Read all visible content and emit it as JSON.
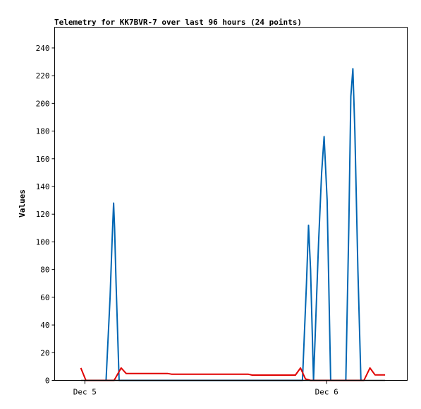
{
  "chart_data": {
    "type": "line",
    "title": "Telemetry for KK7BVR-7 over last 96 hours (24 points)",
    "xlabel": "",
    "ylabel": "Values",
    "x_ticks": [
      "Dec 5",
      "Dec 6"
    ],
    "y_ticks": [
      0,
      20,
      40,
      60,
      80,
      100,
      120,
      140,
      160,
      180,
      200,
      220,
      240
    ],
    "ylim": [
      0,
      255
    ],
    "grid": false,
    "legend": "none",
    "x_unit": "hours from Dec 5 00:00",
    "xlim": [
      -3,
      32
    ],
    "series": [
      {
        "color": "#0066b3",
        "points": [
          [
            2.1,
            0
          ],
          [
            2.5,
            60
          ],
          [
            2.7,
            100
          ],
          [
            2.85,
            128
          ],
          [
            2.95,
            110
          ],
          [
            3.1,
            70
          ],
          [
            3.4,
            0
          ],
          [
            21.6,
            0
          ],
          [
            22.0,
            70
          ],
          [
            22.2,
            112
          ],
          [
            22.4,
            80
          ],
          [
            22.7,
            0
          ],
          [
            22.85,
            30
          ],
          [
            23.2,
            100
          ],
          [
            23.5,
            150
          ],
          [
            23.75,
            176
          ],
          [
            24.05,
            130
          ],
          [
            24.4,
            0
          ],
          [
            25.9,
            0
          ],
          [
            26.2,
            110
          ],
          [
            26.4,
            205
          ],
          [
            26.6,
            225
          ],
          [
            26.8,
            180
          ],
          [
            27.1,
            80
          ],
          [
            27.4,
            0
          ]
        ]
      },
      {
        "color": "#e00000",
        "points": [
          [
            -0.4,
            9
          ],
          [
            0.1,
            0
          ],
          [
            1.6,
            0
          ],
          [
            2.9,
            0
          ],
          [
            3.6,
            9
          ],
          [
            4.1,
            5
          ],
          [
            8.2,
            5
          ],
          [
            8.6,
            4.5
          ],
          [
            16.2,
            4.5
          ],
          [
            16.6,
            3.8
          ],
          [
            20.9,
            3.8
          ],
          [
            21.4,
            9
          ],
          [
            21.9,
            1
          ],
          [
            22.4,
            0
          ],
          [
            27.7,
            0
          ],
          [
            28.3,
            9
          ],
          [
            28.8,
            4
          ],
          [
            29.8,
            4
          ]
        ]
      },
      {
        "color": "#000000",
        "points": [
          [
            -0.4,
            0
          ],
          [
            29.8,
            0
          ]
        ]
      }
    ]
  }
}
